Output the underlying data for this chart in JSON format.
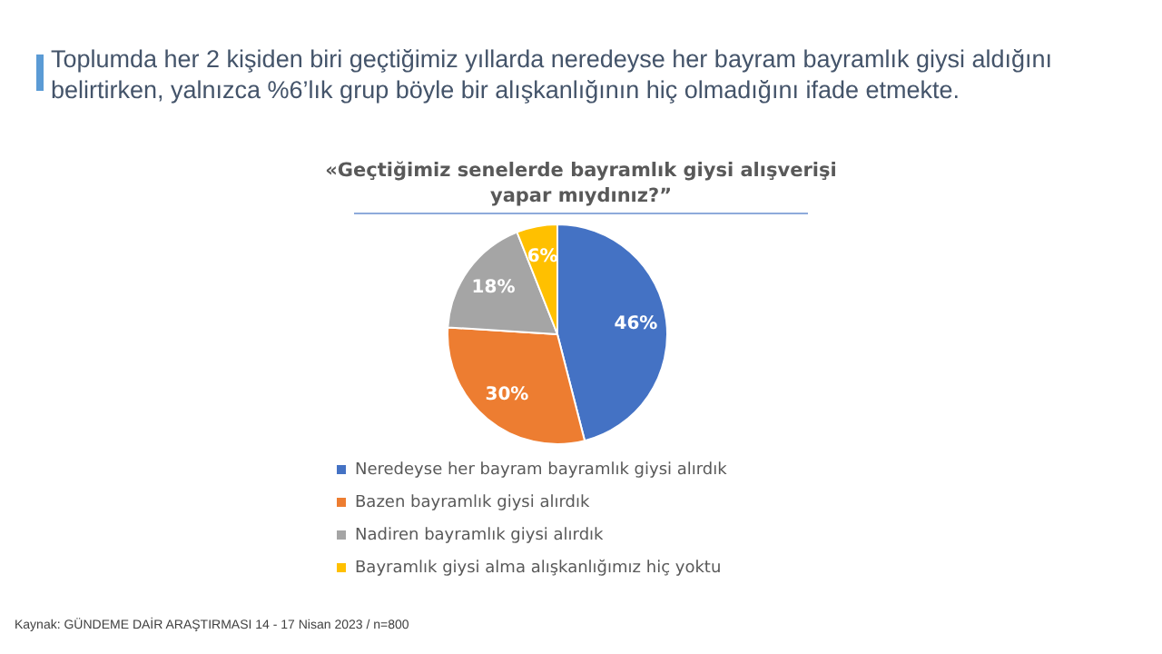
{
  "chart_data": {
    "type": "pie",
    "title": "Toplumda her 2 kişiden biri geçtiğimiz yıllarda neredeyse her bayram bayramlık giysi aldığını belirtirken, yalnızca %6’lık grup böyle bir alışkanlığının hiç olmadığını ifade etmekte.",
    "subtitle": "«Geçtiğimiz senelerde bayramlık giysi alışverişi yapar mıydınız?”",
    "categories": [
      "Neredeyse her bayram bayramlık giysi alırdık",
      "Bazen bayramlık giysi alırdık",
      "Nadiren bayramlık giysi alırdık",
      "Bayramlık giysi alma alışkanlığımız hiç yoktu"
    ],
    "values": [
      46,
      30,
      18,
      6
    ],
    "value_labels": [
      "46%",
      "30%",
      "18%",
      "6%"
    ],
    "colors": [
      "#4472c4",
      "#ed7d31",
      "#a5a5a5",
      "#ffc000"
    ],
    "legend": "bottom",
    "annotations": [
      "Kaynak: GÜNDEME DAİR ARAŞTIRMASI  14 - 17 Nisan 2023 / n=800"
    ]
  }
}
